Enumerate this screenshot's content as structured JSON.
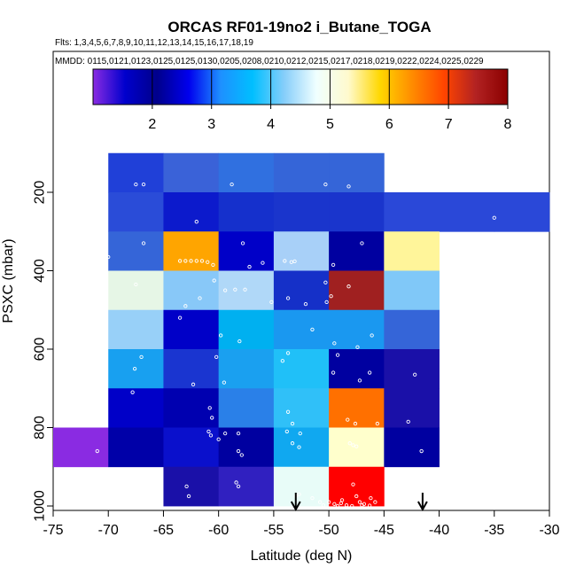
{
  "chart_data": {
    "type": "heatmap",
    "title": "ORCAS RF01-19no2 i_Butane_TOGA",
    "flights_label": "Flts: 1,3,4,5,6,7,8,9,10,11,12,13,14,15,16,17,18,19",
    "dates_label": "MMDD: 0115,0121,0123,0125,0125,0130,0205,0208,0210,0212,0215,0217,0218,0219,0222,0224,0225,0229",
    "xlabel": "Latitude (deg N)",
    "ylabel": "PSXC (mbar)",
    "xlim": [
      -75,
      -30
    ],
    "ylim": [
      1000,
      100
    ],
    "x_ticks": [
      -75,
      -70,
      -65,
      -60,
      -55,
      -50,
      -45,
      -40,
      -35,
      -30
    ],
    "y_ticks": [
      200,
      400,
      600,
      800,
      1000
    ],
    "colorbar": {
      "range": [
        1,
        8
      ],
      "ticks": [
        2,
        3,
        4,
        5,
        6,
        7,
        8
      ],
      "colors": [
        "#8a2be2",
        "#0000cd",
        "#00008b",
        "#0000ee",
        "#1e90ff",
        "#00bfff",
        "#87cefa",
        "#f0ffff",
        "#fffacd",
        "#ffd700",
        "#ff8c00",
        "#ff4500",
        "#b22222",
        "#8b0000"
      ]
    },
    "cells": [
      {
        "lat": -70,
        "p": 150,
        "color": "#2040d8"
      },
      {
        "lat": -65,
        "p": 150,
        "color": "#3a62d8"
      },
      {
        "lat": -60,
        "p": 150,
        "color": "#3070e0"
      },
      {
        "lat": -55,
        "p": 150,
        "color": "#3565d8"
      },
      {
        "lat": -50,
        "p": 150,
        "color": "#3565d8"
      },
      {
        "lat": -70,
        "p": 250,
        "color": "#2a4cd8"
      },
      {
        "lat": -65,
        "p": 250,
        "color": "#0c1acc"
      },
      {
        "lat": -60,
        "p": 250,
        "color": "#1530cc"
      },
      {
        "lat": -55,
        "p": 250,
        "color": "#1a35cc"
      },
      {
        "lat": -50,
        "p": 250,
        "color": "#1a35cc"
      },
      {
        "lat": -45,
        "p": 250,
        "color": "#2a48d8"
      },
      {
        "lat": -40,
        "p": 250,
        "color": "#2a48d8"
      },
      {
        "lat": -35,
        "p": 250,
        "color": "#2a48d8"
      },
      {
        "lat": -70,
        "p": 350,
        "color": "#3565d8"
      },
      {
        "lat": -65,
        "p": 350,
        "color": "#ffa500"
      },
      {
        "lat": -60,
        "p": 350,
        "color": "#0000c8"
      },
      {
        "lat": -55,
        "p": 350,
        "color": "#a8d0f8"
      },
      {
        "lat": -50,
        "p": 350,
        "color": "#0000a0"
      },
      {
        "lat": -45,
        "p": 350,
        "color": "#fff59a"
      },
      {
        "lat": -70,
        "p": 450,
        "color": "#e6f6e6"
      },
      {
        "lat": -65,
        "p": 450,
        "color": "#88c8f8"
      },
      {
        "lat": -60,
        "p": 450,
        "color": "#b0d8f8"
      },
      {
        "lat": -55,
        "p": 450,
        "color": "#1530c8"
      },
      {
        "lat": -50,
        "p": 450,
        "color": "#a02020"
      },
      {
        "lat": -45,
        "p": 450,
        "color": "#80c8f8"
      },
      {
        "lat": -70,
        "p": 550,
        "color": "#98d0f8"
      },
      {
        "lat": -65,
        "p": 550,
        "color": "#0000c8"
      },
      {
        "lat": -60,
        "p": 550,
        "color": "#00b0f0"
      },
      {
        "lat": -55,
        "p": 550,
        "color": "#1a98f0"
      },
      {
        "lat": -50,
        "p": 550,
        "color": "#1a98f0"
      },
      {
        "lat": -45,
        "p": 550,
        "color": "#3565d8"
      },
      {
        "lat": -70,
        "p": 650,
        "color": "#18a0f0"
      },
      {
        "lat": -65,
        "p": 650,
        "color": "#1a35d0"
      },
      {
        "lat": -60,
        "p": 650,
        "color": "#1aa0f0"
      },
      {
        "lat": -55,
        "p": 650,
        "color": "#20c0f8"
      },
      {
        "lat": -50,
        "p": 650,
        "color": "#0000a0"
      },
      {
        "lat": -45,
        "p": 650,
        "color": "#1a10a8"
      },
      {
        "lat": -70,
        "p": 750,
        "color": "#0000c8"
      },
      {
        "lat": -65,
        "p": 750,
        "color": "#0000b0"
      },
      {
        "lat": -60,
        "p": 750,
        "color": "#2a80e8"
      },
      {
        "lat": -55,
        "p": 750,
        "color": "#30c0f8"
      },
      {
        "lat": -50,
        "p": 750,
        "color": "#ff7000"
      },
      {
        "lat": -45,
        "p": 750,
        "color": "#1a10a8"
      },
      {
        "lat": -75,
        "p": 850,
        "color": "#8a2be2"
      },
      {
        "lat": -70,
        "p": 850,
        "color": "#0000a8"
      },
      {
        "lat": -65,
        "p": 850,
        "color": "#0a10cc"
      },
      {
        "lat": -60,
        "p": 850,
        "color": "#0000a0"
      },
      {
        "lat": -55,
        "p": 850,
        "color": "#10a8f0"
      },
      {
        "lat": -50,
        "p": 850,
        "color": "#ffffcc"
      },
      {
        "lat": -45,
        "p": 850,
        "color": "#0000a0"
      },
      {
        "lat": -65,
        "p": 950,
        "color": "#1a10a8"
      },
      {
        "lat": -60,
        "p": 950,
        "color": "#3020c0"
      },
      {
        "lat": -55,
        "p": 950,
        "color": "#e8fcf8"
      },
      {
        "lat": -50,
        "p": 950,
        "color": "#ff0000"
      }
    ],
    "points": [
      [
        -67.5,
        180
      ],
      [
        -66.8,
        180
      ],
      [
        -58.8,
        180
      ],
      [
        -50.3,
        180
      ],
      [
        -48.2,
        185
      ],
      [
        -62,
        275
      ],
      [
        -35,
        265
      ],
      [
        -70,
        365
      ],
      [
        -66.8,
        330
      ],
      [
        -63.5,
        375
      ],
      [
        -63,
        375
      ],
      [
        -62.5,
        375
      ],
      [
        -62,
        375
      ],
      [
        -61.5,
        375
      ],
      [
        -61,
        378
      ],
      [
        -60.5,
        385
      ],
      [
        -57.8,
        330
      ],
      [
        -57.2,
        390
      ],
      [
        -56,
        380
      ],
      [
        -54,
        375
      ],
      [
        -53.4,
        378
      ],
      [
        -53.1,
        376
      ],
      [
        -49.6,
        385
      ],
      [
        -47,
        330
      ],
      [
        -67.5,
        435
      ],
      [
        -63,
        490
      ],
      [
        -61.7,
        470
      ],
      [
        -60.4,
        425
      ],
      [
        -59.4,
        450
      ],
      [
        -58.5,
        448
      ],
      [
        -57.6,
        448
      ],
      [
        -55.2,
        480
      ],
      [
        -53.7,
        470
      ],
      [
        -52.1,
        485
      ],
      [
        -50.3,
        430
      ],
      [
        -50.2,
        480
      ],
      [
        -49.8,
        465
      ],
      [
        -48.2,
        440
      ],
      [
        -63.5,
        520
      ],
      [
        -59.8,
        565
      ],
      [
        -58.1,
        580
      ],
      [
        -51.5,
        550
      ],
      [
        -49.5,
        585
      ],
      [
        -47.4,
        595
      ],
      [
        -46.1,
        565
      ],
      [
        -67,
        620
      ],
      [
        -67.6,
        650
      ],
      [
        -67.8,
        710
      ],
      [
        -62.3,
        690
      ],
      [
        -60.2,
        620
      ],
      [
        -59.5,
        685
      ],
      [
        -54.2,
        630
      ],
      [
        -53.7,
        610
      ],
      [
        -49.2,
        615
      ],
      [
        -49.6,
        660
      ],
      [
        -47.2,
        680
      ],
      [
        -46.3,
        660
      ],
      [
        -42.2,
        665
      ],
      [
        -60.8,
        750
      ],
      [
        -60.6,
        775
      ],
      [
        -60.9,
        810
      ],
      [
        -60.7,
        820
      ],
      [
        -59.4,
        815
      ],
      [
        -58.2,
        815
      ],
      [
        -53.7,
        760
      ],
      [
        -53.3,
        790
      ],
      [
        -52.6,
        815
      ],
      [
        -48.3,
        780
      ],
      [
        -47.6,
        790
      ],
      [
        -45.6,
        790
      ],
      [
        -42.8,
        785
      ],
      [
        -71,
        860
      ],
      [
        -60,
        830
      ],
      [
        -58.2,
        860
      ],
      [
        -57.9,
        870
      ],
      [
        -53.8,
        810
      ],
      [
        -53.3,
        840
      ],
      [
        -52.7,
        850
      ],
      [
        -48.1,
        840
      ],
      [
        -47.8,
        845
      ],
      [
        -47.5,
        848
      ],
      [
        -41.6,
        860
      ],
      [
        -62.9,
        950
      ],
      [
        -62.7,
        975
      ],
      [
        -58.4,
        940
      ],
      [
        -58.2,
        950
      ],
      [
        -53,
        975
      ],
      [
        -52.7,
        970
      ],
      [
        -51.5,
        980
      ],
      [
        -50,
        990
      ],
      [
        -48.8,
        985
      ],
      [
        -47.8,
        945
      ],
      [
        -47.5,
        975
      ],
      [
        -47.2,
        990
      ],
      [
        -46.8,
        995
      ],
      [
        -46.2,
        980
      ],
      [
        -49.5,
        995
      ],
      [
        -50.5,
        998
      ],
      [
        -48.4,
        998
      ],
      [
        -48.9,
        993
      ],
      [
        -47.9,
        1000
      ],
      [
        -46.3,
        999
      ],
      [
        -50.8,
        990
      ],
      [
        -45.8,
        990
      ],
      [
        -49.2,
        1000
      ],
      [
        -47,
        998
      ]
    ],
    "arrows_lat": [
      -53,
      -41.5
    ]
  }
}
